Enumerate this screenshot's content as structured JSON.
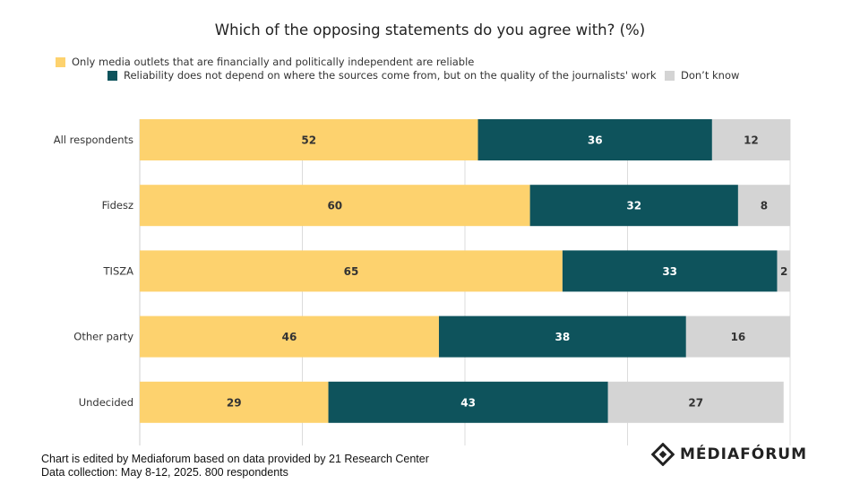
{
  "chart_data": {
    "type": "bar",
    "orientation": "horizontal",
    "stacked": true,
    "title": "Which of the opposing statements do you agree with? (%)",
    "categories": [
      "All respondents",
      "Fidesz",
      "TISZA",
      "Other party",
      "Undecided"
    ],
    "series": [
      {
        "name": "Only media outlets that are financially and politically independent are reliable",
        "color": "#fdd26e",
        "values": [
          52,
          60,
          65,
          46,
          29
        ]
      },
      {
        "name": "Reliability does not depend on where the sources come from, but on the quality of the journalists' work",
        "color": "#0e535c",
        "values": [
          36,
          32,
          33,
          38,
          43
        ]
      },
      {
        "name": "Don’t know",
        "color": "#d4d4d4",
        "values": [
          12,
          8,
          2,
          16,
          27
        ]
      }
    ],
    "xlim": [
      0,
      100
    ],
    "grid": true,
    "legend_position": "top"
  },
  "footer": {
    "line1": "Chart is edited by Mediaforum based on data provided by 21 Research Center",
    "line2": "Data collection: May 8-12, 2025. 800 respondents"
  },
  "logo": {
    "text": "MÉDIAFÓRUM",
    "icon": "mediaforum-diamond-logo-icon"
  }
}
